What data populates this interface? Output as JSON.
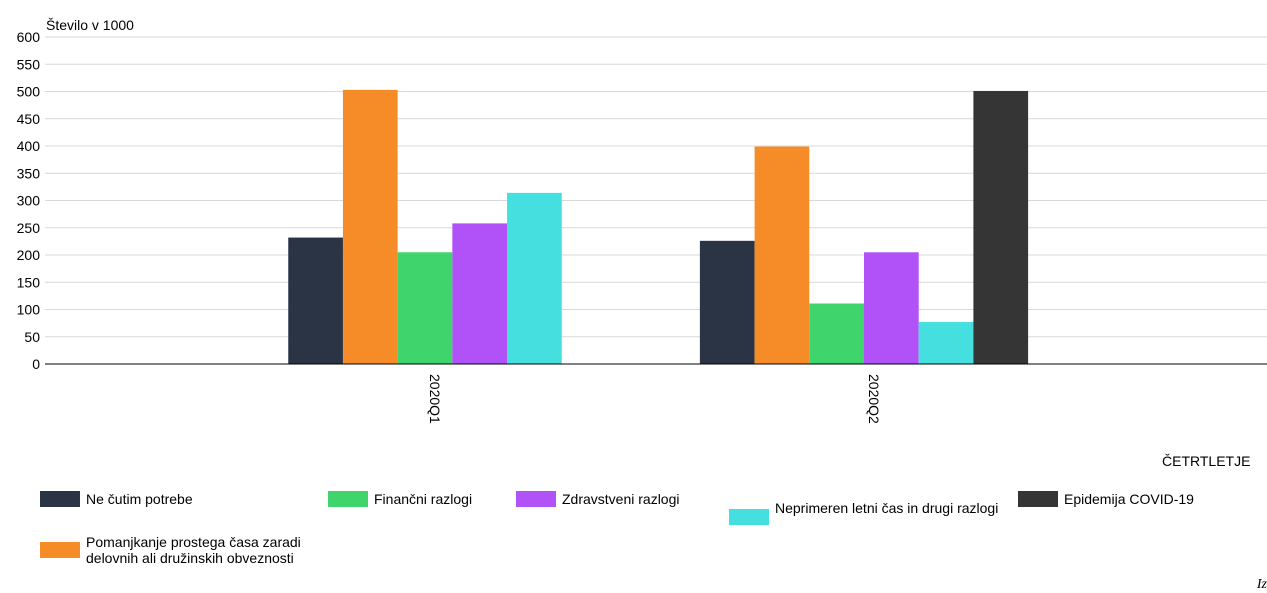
{
  "chart_data": {
    "type": "bar",
    "title": "",
    "ylabel": "Število v 1000",
    "xlabel": "ČETRTLETJE",
    "ylim": [
      0,
      600
    ],
    "yticks": [
      0,
      50,
      100,
      150,
      200,
      250,
      300,
      350,
      400,
      450,
      500,
      550,
      600
    ],
    "categories": [
      "2020Q1",
      "2020Q2"
    ],
    "grid": true,
    "legend_position": "bottom",
    "series": [
      {
        "name": "Ne čutim potrebe",
        "color": "#2b3445",
        "values": [
          232,
          226
        ]
      },
      {
        "name": "Pomanjkanje prostega časa zaradi delovnih ali družinskih obveznosti",
        "color": "#f68c28",
        "values": [
          503,
          399
        ]
      },
      {
        "name": "Finančni razlogi",
        "color": "#3fd46c",
        "values": [
          205,
          111
        ]
      },
      {
        "name": "Zdravstveni razlogi",
        "color": "#b052f7",
        "values": [
          258,
          205
        ]
      },
      {
        "name": "Neprimeren letni čas in drugi razlogi",
        "color": "#45dfe0",
        "values": [
          314,
          77
        ]
      },
      {
        "name": "Epidemija COVID-19",
        "color": "#353535",
        "values": [
          null,
          501
        ]
      }
    ]
  },
  "legend": [
    {
      "name": "Ne čutim potrebe",
      "color": "#2b3445"
    },
    {
      "name": "Finančni razlogi",
      "color": "#3fd46c"
    },
    {
      "name": "Zdravstveni razlogi",
      "color": "#b052f7"
    },
    {
      "name": "Neprimeren letni čas in drugi razlogi",
      "color": "#45dfe0"
    },
    {
      "name": "Epidemija COVID-19",
      "color": "#353535"
    },
    {
      "name": "Pomanjkanje prostega časa zaradi delovnih ali družinskih obveznosti",
      "color": "#f68c28"
    }
  ],
  "source_note": "Iz"
}
